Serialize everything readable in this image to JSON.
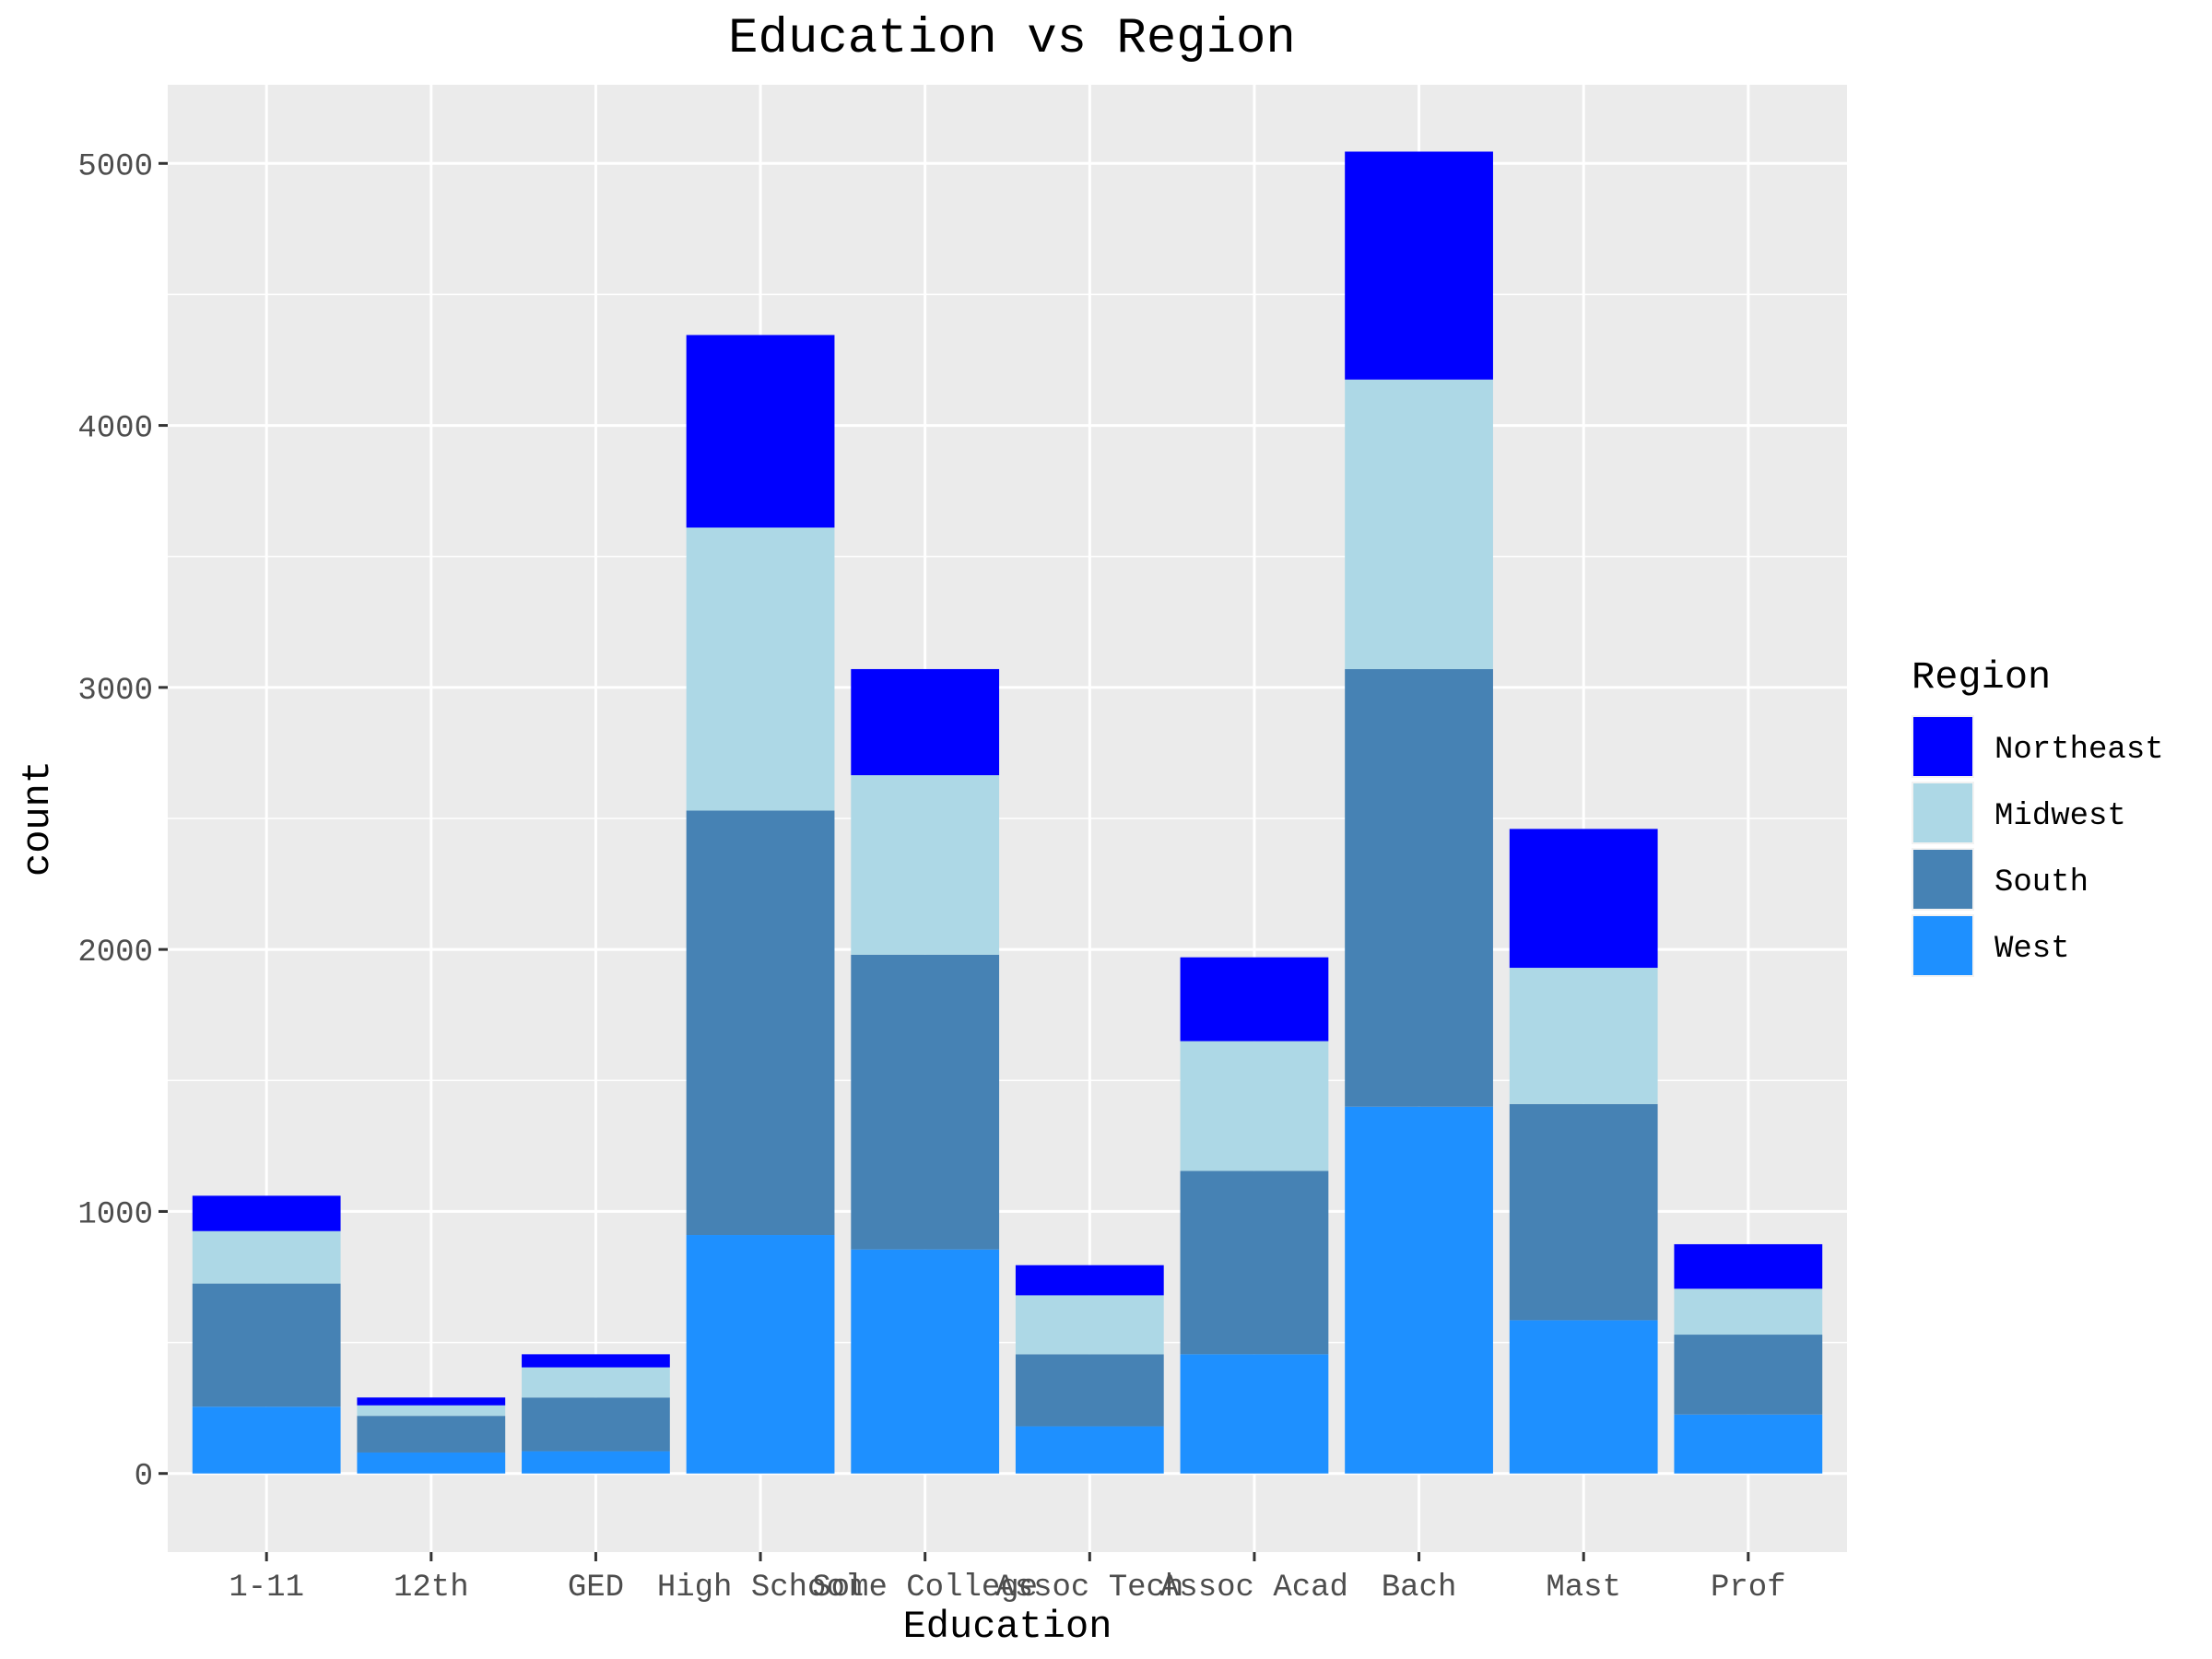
{
  "chart_data": {
    "type": "bar",
    "stacked": true,
    "title": "Education vs Region",
    "xlabel": "Education",
    "ylabel": "count",
    "ylim": [
      -300,
      5300
    ],
    "yticks": [
      0,
      1000,
      2000,
      3000,
      4000,
      5000
    ],
    "ytick_labels": [
      "0",
      "1000",
      "2000",
      "3000",
      "4000",
      "5000"
    ],
    "grid": true,
    "legend_title": "Region",
    "legend_position": "right",
    "categories": [
      "1-11",
      "12th",
      "GED",
      "High School",
      "Some College",
      "Assoc Tech",
      "Assoc Acad",
      "Bach",
      "Mast",
      "Prof"
    ],
    "series": [
      {
        "name": "West",
        "color": "#1E90FF",
        "values": [
          255,
          80,
          85,
          910,
          855,
          180,
          455,
          1400,
          585,
          225
        ]
      },
      {
        "name": "South",
        "color": "#4682B4",
        "values": [
          470,
          140,
          205,
          1620,
          1125,
          275,
          700,
          1670,
          825,
          305
        ]
      },
      {
        "name": "Midwest",
        "color": "#ADD8E6",
        "values": [
          200,
          40,
          115,
          1080,
          685,
          225,
          495,
          1105,
          520,
          175
        ]
      },
      {
        "name": "Northeast",
        "color": "#0000FF",
        "values": [
          135,
          30,
          50,
          735,
          405,
          115,
          320,
          870,
          530,
          170
        ]
      }
    ],
    "legend_order": [
      "Northeast",
      "Midwest",
      "South",
      "West"
    ]
  }
}
